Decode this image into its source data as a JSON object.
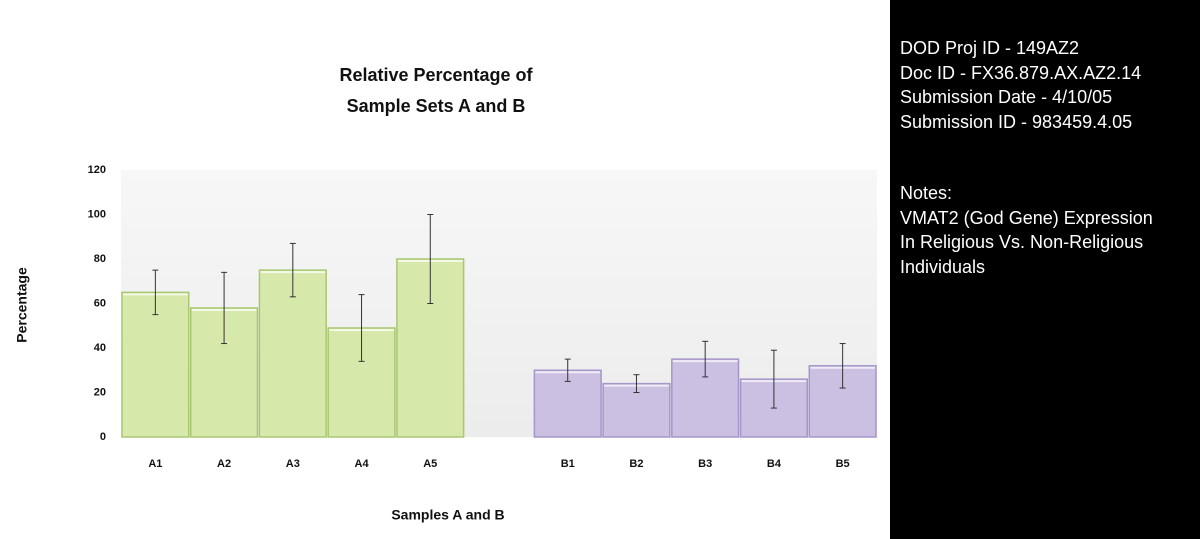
{
  "chart_data": {
    "type": "bar",
    "title": "Relative Percentage of Sample Sets A and B",
    "x_label": "Samples A and B",
    "y_label": "Percentage",
    "categories": [
      "A1",
      "A2",
      "A3",
      "A4",
      "A5",
      null,
      "B1",
      "B2",
      "B3",
      "B4",
      "B5"
    ],
    "values": [
      65,
      58,
      75,
      49,
      80,
      null,
      30,
      24,
      35,
      26,
      32
    ],
    "errors": [
      10,
      16,
      12,
      15,
      20,
      null,
      5,
      4,
      8,
      13,
      10
    ],
    "colors": [
      "#d6e9aa",
      "#d6e9aa",
      "#d6e9aa",
      "#d6e9aa",
      "#d6e9aa",
      null,
      "#cbbfe2",
      "#cbbfe2",
      "#cbbfe2",
      "#cbbfe2",
      "#cbbfe2"
    ],
    "ylim": [
      0,
      120
    ],
    "yticks": [
      0,
      20,
      40,
      60,
      80,
      100,
      120
    ],
    "grid": false
  },
  "info": {
    "lines": [
      "DOD Proj ID - 149AZ2",
      "Doc ID - FX36.879.AX.AZ2.14",
      "Submission Date - 4/10/05",
      "Submission ID - 983459.4.05"
    ],
    "notes_title": "Notes:",
    "notes": [
      "VMAT2 (God Gene) Expression",
      "In Religious Vs. Non-Religious",
      "Individuals"
    ]
  }
}
